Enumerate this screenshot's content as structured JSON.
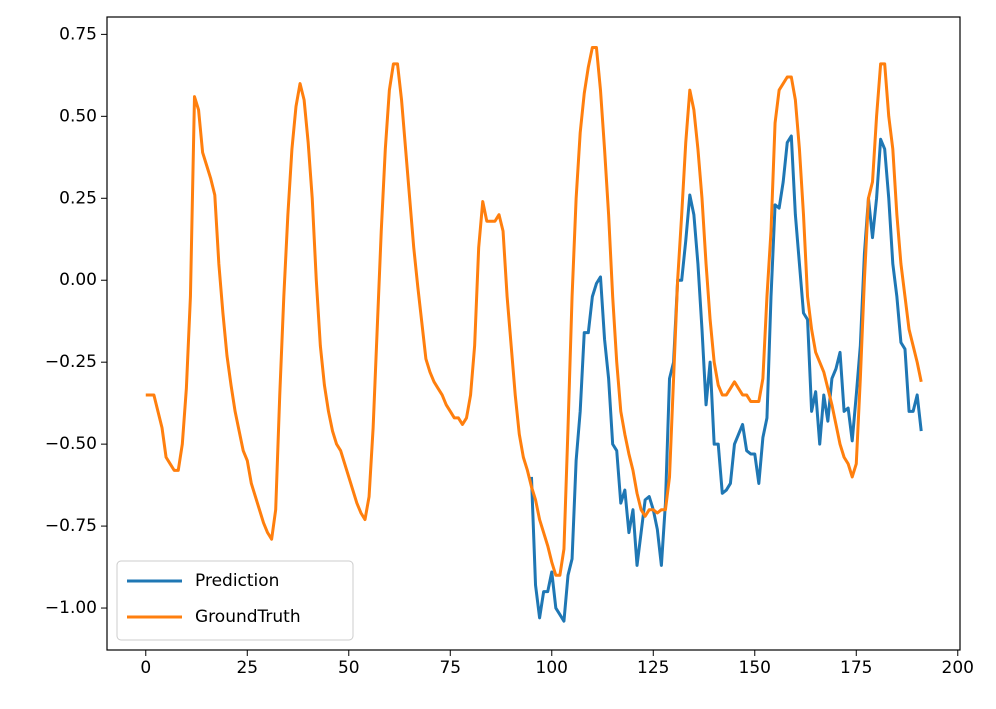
{
  "chart_data": {
    "type": "line",
    "x": [
      0,
      1,
      2,
      3,
      4,
      5,
      6,
      7,
      8,
      9,
      10,
      11,
      12,
      13,
      14,
      15,
      16,
      17,
      18,
      19,
      20,
      21,
      22,
      23,
      24,
      25,
      26,
      27,
      28,
      29,
      30,
      31,
      32,
      33,
      34,
      35,
      36,
      37,
      38,
      39,
      40,
      41,
      42,
      43,
      44,
      45,
      46,
      47,
      48,
      49,
      50,
      51,
      52,
      53,
      54,
      55,
      56,
      57,
      58,
      59,
      60,
      61,
      62,
      63,
      64,
      65,
      66,
      67,
      68,
      69,
      70,
      71,
      72,
      73,
      74,
      75,
      76,
      77,
      78,
      79,
      80,
      81,
      82,
      83,
      84,
      85,
      86,
      87,
      88,
      89,
      90,
      91,
      92,
      93,
      94,
      95,
      96,
      97,
      98,
      99,
      100,
      101,
      102,
      103,
      104,
      105,
      106,
      107,
      108,
      109,
      110,
      111,
      112,
      113,
      114,
      115,
      116,
      117,
      118,
      119,
      120,
      121,
      122,
      123,
      124,
      125,
      126,
      127,
      128,
      129,
      130,
      131,
      132,
      133,
      134,
      135,
      136,
      137,
      138,
      139,
      140,
      141,
      142,
      143,
      144,
      145,
      146,
      147,
      148,
      149,
      150,
      151,
      152,
      153,
      154,
      155,
      156,
      157,
      158,
      159,
      160,
      161,
      162,
      163,
      164,
      165,
      166,
      167,
      168,
      169,
      170,
      171,
      172,
      173,
      174,
      175,
      176,
      177,
      178,
      179,
      180,
      181,
      182,
      183,
      184,
      185,
      186,
      187,
      188,
      189,
      190,
      191
    ],
    "series": [
      {
        "name": "Prediction",
        "color": "#1f77b4",
        "values": [
          null,
          null,
          null,
          null,
          null,
          null,
          null,
          null,
          null,
          null,
          null,
          null,
          null,
          null,
          null,
          null,
          null,
          null,
          null,
          null,
          null,
          null,
          null,
          null,
          null,
          null,
          null,
          null,
          null,
          null,
          null,
          null,
          null,
          null,
          null,
          null,
          null,
          null,
          null,
          null,
          null,
          null,
          null,
          null,
          null,
          null,
          null,
          null,
          null,
          null,
          null,
          null,
          null,
          null,
          null,
          null,
          null,
          null,
          null,
          null,
          null,
          null,
          null,
          null,
          null,
          null,
          null,
          null,
          null,
          null,
          null,
          null,
          null,
          null,
          null,
          null,
          null,
          null,
          null,
          null,
          null,
          null,
          null,
          null,
          null,
          null,
          null,
          null,
          null,
          null,
          null,
          null,
          null,
          null,
          null,
          -0.6,
          -0.93,
          -1.03,
          -0.95,
          -0.95,
          -0.89,
          -1.0,
          -1.02,
          -1.04,
          -0.9,
          -0.85,
          -0.55,
          -0.4,
          -0.16,
          -0.16,
          -0.05,
          -0.01,
          0.01,
          -0.18,
          -0.3,
          -0.5,
          -0.52,
          -0.68,
          -0.64,
          -0.77,
          -0.7,
          -0.87,
          -0.77,
          -0.67,
          -0.66,
          -0.7,
          -0.76,
          -0.87,
          -0.68,
          -0.3,
          -0.25,
          0.0,
          0.0,
          0.12,
          0.26,
          0.2,
          0.05,
          -0.15,
          -0.38,
          -0.25,
          -0.5,
          -0.5,
          -0.65,
          -0.64,
          -0.62,
          -0.5,
          -0.47,
          -0.44,
          -0.52,
          -0.53,
          -0.53,
          -0.62,
          -0.48,
          -0.42,
          -0.05,
          0.23,
          0.22,
          0.3,
          0.42,
          0.44,
          0.2,
          0.05,
          -0.1,
          -0.12,
          -0.4,
          -0.34,
          -0.5,
          -0.35,
          -0.43,
          -0.3,
          -0.27,
          -0.22,
          -0.4,
          -0.39,
          -0.49,
          -0.35,
          -0.2,
          0.08,
          0.25,
          0.13,
          0.25,
          0.43,
          0.4,
          0.25,
          0.05,
          -0.05,
          -0.19,
          -0.21,
          -0.4,
          -0.4,
          -0.35,
          -0.46
        ]
      },
      {
        "name": "GroundTruth",
        "color": "#ff7f0e",
        "values": [
          -0.35,
          -0.35,
          -0.35,
          -0.4,
          -0.45,
          -0.54,
          -0.56,
          -0.58,
          -0.58,
          -0.5,
          -0.33,
          -0.05,
          0.56,
          0.52,
          0.39,
          0.35,
          0.31,
          0.26,
          0.05,
          -0.1,
          -0.23,
          -0.32,
          -0.4,
          -0.46,
          -0.52,
          -0.55,
          -0.62,
          -0.66,
          -0.7,
          -0.74,
          -0.77,
          -0.79,
          -0.7,
          -0.35,
          -0.05,
          0.2,
          0.4,
          0.53,
          0.6,
          0.55,
          0.42,
          0.25,
          0.0,
          -0.2,
          -0.32,
          -0.4,
          -0.46,
          -0.5,
          -0.52,
          -0.56,
          -0.6,
          -0.64,
          -0.68,
          -0.71,
          -0.73,
          -0.66,
          -0.45,
          -0.15,
          0.15,
          0.4,
          0.58,
          0.66,
          0.66,
          0.55,
          0.4,
          0.25,
          0.1,
          -0.02,
          -0.13,
          -0.24,
          -0.28,
          -0.31,
          -0.33,
          -0.35,
          -0.38,
          -0.4,
          -0.42,
          -0.42,
          -0.44,
          -0.42,
          -0.35,
          -0.2,
          0.1,
          0.24,
          0.18,
          0.18,
          0.18,
          0.2,
          0.15,
          -0.05,
          -0.2,
          -0.35,
          -0.47,
          -0.54,
          -0.58,
          -0.63,
          -0.67,
          -0.73,
          -0.77,
          -0.81,
          -0.86,
          -0.9,
          -0.9,
          -0.82,
          -0.45,
          -0.05,
          0.25,
          0.45,
          0.57,
          0.65,
          0.71,
          0.71,
          0.58,
          0.4,
          0.2,
          -0.05,
          -0.25,
          -0.4,
          -0.47,
          -0.53,
          -0.58,
          -0.65,
          -0.7,
          -0.72,
          -0.7,
          -0.7,
          -0.71,
          -0.7,
          -0.7,
          -0.6,
          -0.3,
          0.0,
          0.2,
          0.42,
          0.58,
          0.52,
          0.4,
          0.25,
          0.05,
          -0.12,
          -0.25,
          -0.32,
          -0.35,
          -0.35,
          -0.33,
          -0.31,
          -0.33,
          -0.35,
          -0.35,
          -0.37,
          -0.37,
          -0.37,
          -0.3,
          -0.05,
          0.15,
          0.48,
          0.58,
          0.6,
          0.62,
          0.62,
          0.55,
          0.4,
          0.2,
          -0.05,
          -0.15,
          -0.22,
          -0.25,
          -0.28,
          -0.33,
          -0.38,
          -0.44,
          -0.5,
          -0.54,
          -0.56,
          -0.6,
          -0.56,
          -0.3,
          0.0,
          0.25,
          0.3,
          0.5,
          0.66,
          0.66,
          0.5,
          0.4,
          0.2,
          0.05,
          -0.05,
          -0.15,
          -0.2,
          -0.25,
          -0.31
        ]
      }
    ],
    "xlim": [
      -9.55,
      200.55
    ],
    "ylim": [
      -1.128,
      0.803
    ],
    "xticks": [
      0,
      25,
      50,
      75,
      100,
      125,
      150,
      175,
      200
    ],
    "yticks": [
      {
        "value": -1.0,
        "label": "−1.00"
      },
      {
        "value": -0.75,
        "label": "−0.75"
      },
      {
        "value": -0.5,
        "label": "−0.50"
      },
      {
        "value": -0.25,
        "label": "−0.25"
      },
      {
        "value": 0,
        "label": "0.00"
      },
      0.25,
      {
        "value": 0.5,
        "label": "0.50"
      },
      0.75
    ],
    "legend": "lower left"
  }
}
